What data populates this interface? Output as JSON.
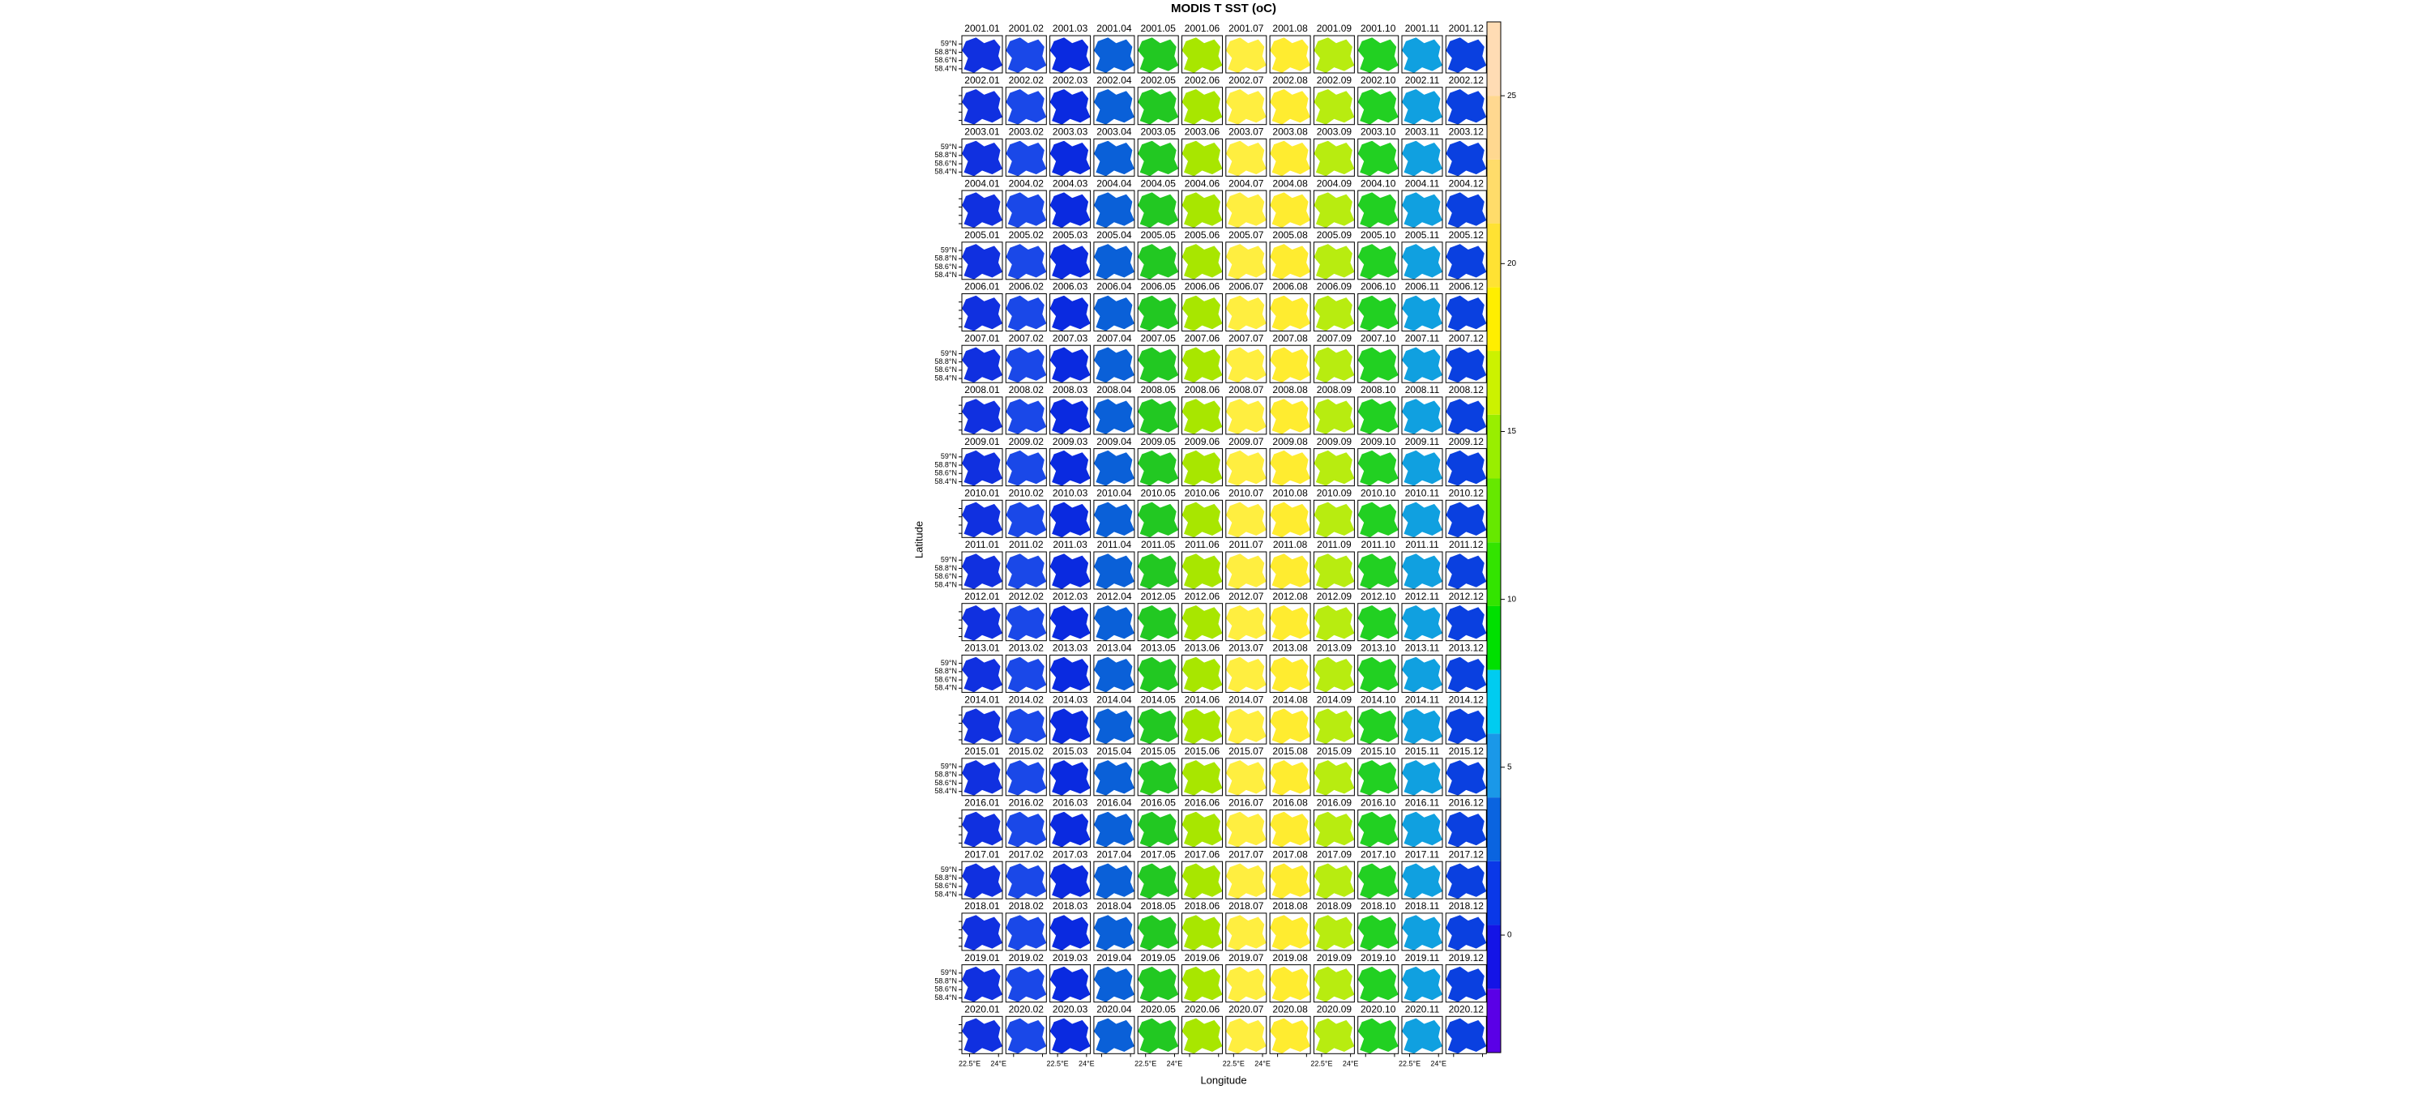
{
  "chart_data": {
    "type": "map-grid",
    "title": "MODIS T SST (oC)",
    "x_label": "Longitude",
    "y_label": "Latitude",
    "xlim": [
      22.1,
      24.2
    ],
    "ylim": [
      58.3,
      59.2
    ],
    "xticks": [
      {
        "value": 22.5,
        "label": "22.5°E"
      },
      {
        "value": 24,
        "label": "24°E"
      }
    ],
    "yticks": [
      {
        "value": 59,
        "label": "59°N"
      },
      {
        "value": 58.8,
        "label": "58.8°N"
      },
      {
        "value": 58.6,
        "label": "58.6°N"
      },
      {
        "value": 58.4,
        "label": "58.4°N"
      }
    ],
    "month_colors": [
      "#1030e0",
      "#1a48e8",
      "#0a2ae0",
      "#0a60d8",
      "#22c822",
      "#a8e600",
      "#ffee40",
      "#ffec30",
      "#b8ec10",
      "#22d022",
      "#10a0e0",
      "#0a40e0"
    ],
    "panels": [
      [
        "2001.01",
        "2001.02",
        "2001.03",
        "2001.04",
        "2001.05",
        "2001.06",
        "2001.07",
        "2001.08",
        "2001.09",
        "2001.10",
        "2001.11",
        "2001.12"
      ],
      [
        "2002.01",
        "2002.02",
        "2002.03",
        "2002.04",
        "2002.05",
        "2002.06",
        "2002.07",
        "2002.08",
        "2002.09",
        "2002.10",
        "2002.11",
        "2002.12"
      ],
      [
        "2003.01",
        "2003.02",
        "2003.03",
        "2003.04",
        "2003.05",
        "2003.06",
        "2003.07",
        "2003.08",
        "2003.09",
        "2003.10",
        "2003.11",
        "2003.12"
      ],
      [
        "2004.01",
        "2004.02",
        "2004.03",
        "2004.04",
        "2004.05",
        "2004.06",
        "2004.07",
        "2004.08",
        "2004.09",
        "2004.10",
        "2004.11",
        "2004.12"
      ],
      [
        "2005.01",
        "2005.02",
        "2005.03",
        "2005.04",
        "2005.05",
        "2005.06",
        "2005.07",
        "2005.08",
        "2005.09",
        "2005.10",
        "2005.11",
        "2005.12"
      ],
      [
        "2006.01",
        "2006.02",
        "2006.03",
        "2006.04",
        "2006.05",
        "2006.06",
        "2006.07",
        "2006.08",
        "2006.09",
        "2006.10",
        "2006.11",
        "2006.12"
      ],
      [
        "2007.01",
        "2007.02",
        "2007.03",
        "2007.04",
        "2007.05",
        "2007.06",
        "2007.07",
        "2007.08",
        "2007.09",
        "2007.10",
        "2007.11",
        "2007.12"
      ],
      [
        "2008.01",
        "2008.02",
        "2008.03",
        "2008.04",
        "2008.05",
        "2008.06",
        "2008.07",
        "2008.08",
        "2008.09",
        "2008.10",
        "2008.11",
        "2008.12"
      ],
      [
        "2009.01",
        "2009.02",
        "2009.03",
        "2009.04",
        "2009.05",
        "2009.06",
        "2009.07",
        "2009.08",
        "2009.09",
        "2009.10",
        "2009.11",
        "2009.12"
      ],
      [
        "2010.01",
        "2010.02",
        "2010.03",
        "2010.04",
        "2010.05",
        "2010.06",
        "2010.07",
        "2010.08",
        "2010.09",
        "2010.10",
        "2010.11",
        "2010.12"
      ],
      [
        "2011.01",
        "2011.02",
        "2011.03",
        "2011.04",
        "2011.05",
        "2011.06",
        "2011.07",
        "2011.08",
        "2011.09",
        "2011.10",
        "2011.11",
        "2011.12"
      ],
      [
        "2012.01",
        "2012.02",
        "2012.03",
        "2012.04",
        "2012.05",
        "2012.06",
        "2012.07",
        "2012.08",
        "2012.09",
        "2012.10",
        "2012.11",
        "2012.12"
      ],
      [
        "2013.01",
        "2013.02",
        "2013.03",
        "2013.04",
        "2013.05",
        "2013.06",
        "2013.07",
        "2013.08",
        "2013.09",
        "2013.10",
        "2013.11",
        "2013.12"
      ],
      [
        "2014.01",
        "2014.02",
        "2014.03",
        "2014.04",
        "2014.05",
        "2014.06",
        "2014.07",
        "2014.08",
        "2014.09",
        "2014.10",
        "2014.11",
        "2014.12"
      ],
      [
        "2015.01",
        "2015.02",
        "2015.03",
        "2015.04",
        "2015.05",
        "2015.06",
        "2015.07",
        "2015.08",
        "2015.09",
        "2015.10",
        "2015.11",
        "2015.12"
      ],
      [
        "2016.01",
        "2016.02",
        "2016.03",
        "2016.04",
        "2016.05",
        "2016.06",
        "2016.07",
        "2016.08",
        "2016.09",
        "2016.10",
        "2016.11",
        "2016.12"
      ],
      [
        "2017.01",
        "2017.02",
        "2017.03",
        "2017.04",
        "2017.05",
        "2017.06",
        "2017.07",
        "2017.08",
        "2017.09",
        "2017.10",
        "2017.11",
        "2017.12"
      ],
      [
        "2018.01",
        "2018.02",
        "2018.03",
        "2018.04",
        "2018.05",
        "2018.06",
        "2018.07",
        "2018.08",
        "2018.09",
        "2018.10",
        "2018.11",
        "2018.12"
      ],
      [
        "2019.01",
        "2019.02",
        "2019.03",
        "2019.04",
        "2019.05",
        "2019.06",
        "2019.07",
        "2019.08",
        "2019.09",
        "2019.10",
        "2019.11",
        "2019.12"
      ],
      [
        "2020.01",
        "2020.02",
        "2020.03",
        "2020.04",
        "2020.05",
        "2020.06",
        "2020.07",
        "2020.08",
        "2020.09",
        "2020.10",
        "2020.11",
        "2020.12"
      ]
    ],
    "colorbar": {
      "lim": [
        -3.5,
        27.2
      ],
      "ticks": [
        0,
        5,
        10,
        15,
        20,
        25
      ],
      "breaks": [
        -3.5,
        -1.6,
        0.3,
        2.2,
        4.1,
        6,
        7.9,
        9.8,
        11.7,
        13.6,
        15.5,
        17.4,
        19.3,
        21.2,
        23.1,
        25,
        27.2
      ],
      "colors": [
        "#5a00e6",
        "#1414e6",
        "#0a38e8",
        "#0a64e0",
        "#1a98e8",
        "#00ccf0",
        "#00e000",
        "#33e400",
        "#66e800",
        "#99ee00",
        "#ccf200",
        "#ffee00",
        "#ffe233",
        "#ffdc6a",
        "#ffd890",
        "#ffdcb4"
      ]
    }
  }
}
